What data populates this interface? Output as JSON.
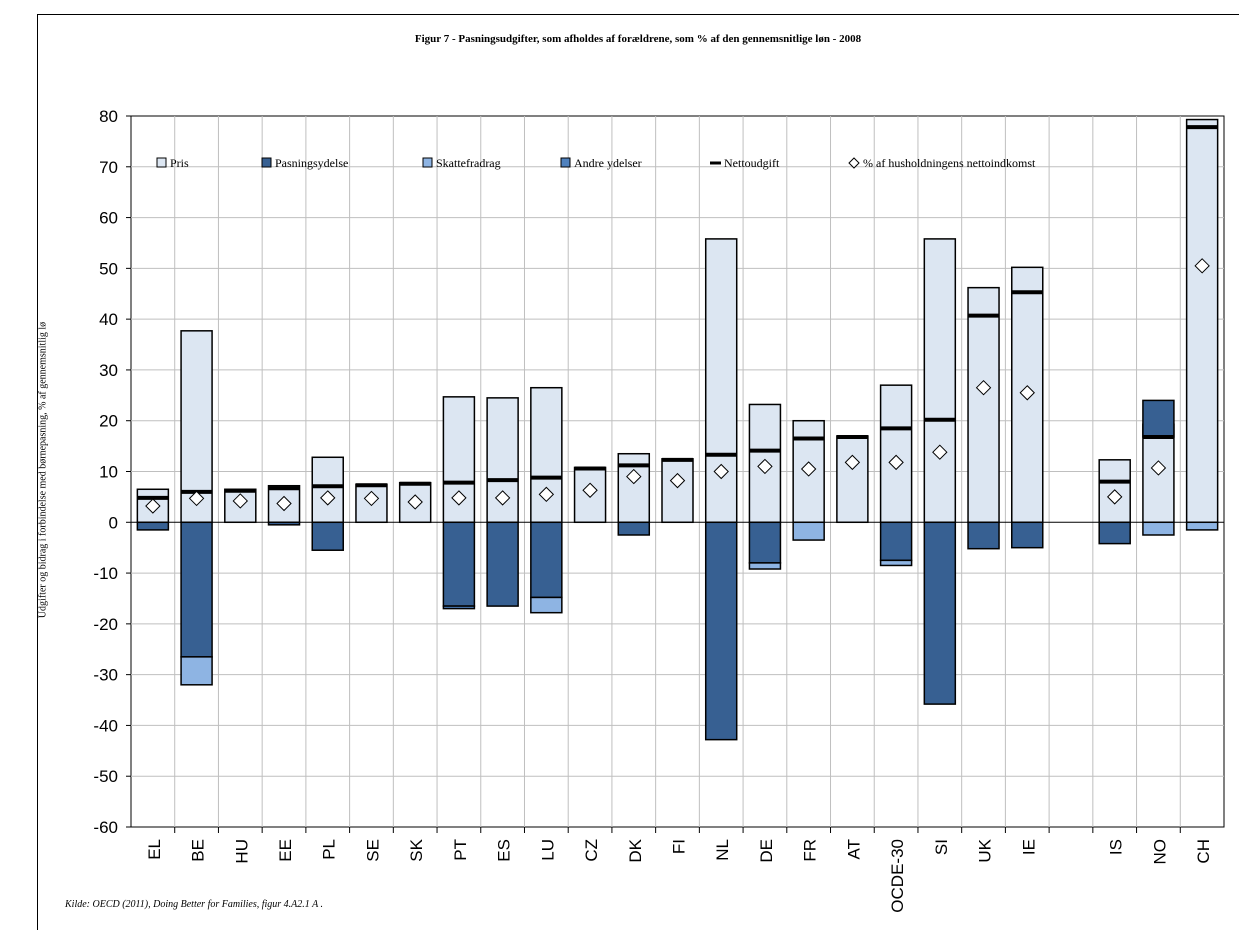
{
  "chart_data": {
    "type": "bar",
    "title": "Figur 7 - Pasningsudgifter, som afholdes af forældrene, som % af den gennemsnitlige løn - 2008",
    "ylabel": "Udgifter og bidrag i forbindelse med børnepasning, % af gennemsnitlig lø",
    "xlabel": "",
    "ylim": [
      -60,
      80
    ],
    "yticks": [
      80,
      70,
      60,
      50,
      40,
      30,
      20,
      10,
      0,
      -10,
      -20,
      -30,
      -40,
      -50,
      -60
    ],
    "grid": true,
    "legend_position": "top",
    "source": "Kilde: OECD (2011), Doing Better for Families, figur 4.A2.1 A .",
    "categories": [
      "EL",
      "BE",
      "HU",
      "EE",
      "PL",
      "SE",
      "SK",
      "PT",
      "ES",
      "LU",
      "CZ",
      "DK",
      "FI",
      "NL",
      "DE",
      "FR",
      "AT",
      "OCDE-30",
      "SI",
      "UK",
      "IE",
      "",
      "IS",
      "NO",
      "CH"
    ],
    "series": [
      {
        "name": "Pris",
        "color": "#dce6f2",
        "values": [
          6.5,
          37.7,
          6.5,
          7.2,
          12.8,
          7.5,
          7.8,
          24.7,
          24.5,
          26.5,
          10.8,
          13.5,
          12.5,
          55.8,
          23.2,
          20,
          17,
          27,
          55.8,
          46.2,
          50.2,
          null,
          12.3,
          19.3,
          79.3
        ]
      },
      {
        "name": "Pasningsydelse",
        "color": "#376092",
        "values": [
          -1.5,
          -26.5,
          0,
          -0.5,
          -5.5,
          0,
          0,
          -16.5,
          -16.5,
          -14.8,
          0,
          -2.5,
          0,
          -42.8,
          -8,
          0,
          0,
          -7.5,
          -35.8,
          -5.2,
          -5,
          null,
          -4.2,
          7.2,
          0
        ]
      },
      {
        "name": "Skattefradrag",
        "color": "#8eb4e3",
        "values": [
          0,
          -5.5,
          0,
          0,
          0,
          0,
          0,
          0,
          0,
          -3,
          0,
          0,
          0,
          0,
          -1.2,
          -3.5,
          0,
          -1,
          0,
          0,
          0,
          null,
          0,
          -2.5,
          -1.5
        ]
      },
      {
        "name": "Andre ydelser",
        "color": "#4f81bd",
        "values": [
          0,
          0,
          0,
          0,
          0,
          0,
          0,
          -0.5,
          0,
          0,
          0,
          0,
          0,
          0,
          0,
          0,
          0,
          0,
          0,
          0,
          0,
          null,
          0,
          0,
          0
        ]
      },
      {
        "name": "Nettoudgift",
        "color": "#000000",
        "values": [
          4.8,
          6,
          6.2,
          6.7,
          7.1,
          7.3,
          7.6,
          7.8,
          8.3,
          8.8,
          10.6,
          11.2,
          12.3,
          13.3,
          14.1,
          16.5,
          16.8,
          18.5,
          20.2,
          40.7,
          45.3,
          null,
          8,
          16.8,
          77.8
        ]
      },
      {
        "name": "% af husholdningens nettoindkomst",
        "color": "#ffffff",
        "values": [
          3.2,
          4.7,
          4.2,
          3.7,
          4.8,
          4.7,
          4,
          4.8,
          4.8,
          5.5,
          6.3,
          9,
          8.2,
          10,
          11,
          10.5,
          11.8,
          11.8,
          13.8,
          26.5,
          25.5,
          null,
          5,
          10.7,
          50.5
        ]
      }
    ]
  }
}
